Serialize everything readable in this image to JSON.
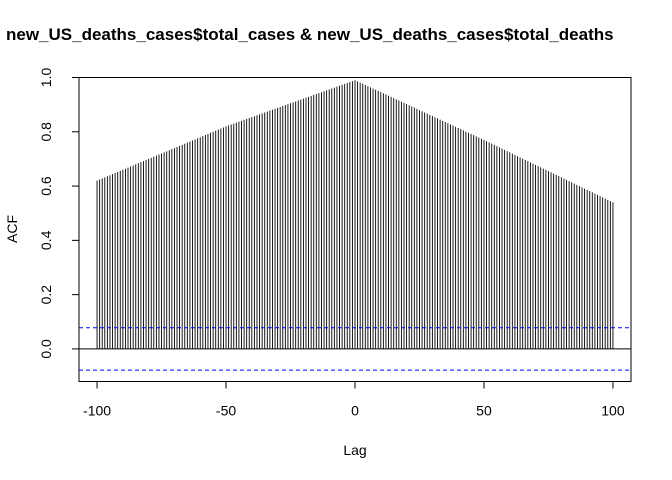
{
  "chart_data": {
    "type": "bar",
    "subtype": "cross-correlation (ccf) spike plot",
    "title": "new_US_deaths_cases$total_cases & new_US_deaths_cases$total_deaths",
    "xlabel": "Lag",
    "ylabel": "ACF",
    "xlim": [
      -107,
      107
    ],
    "ylim": [
      -0.12,
      1.0
    ],
    "x_ticks": [
      -100,
      -50,
      0,
      50,
      100
    ],
    "y_ticks": [
      0.0,
      0.2,
      0.4,
      0.6,
      0.8,
      1.0
    ],
    "x_tick_labels": [
      "-100",
      "-50",
      "0",
      "50",
      "100"
    ],
    "y_tick_labels": [
      "0.0",
      "0.2",
      "0.4",
      "0.6",
      "0.8",
      "1.0"
    ],
    "grid": false,
    "legend": "none",
    "lags": {
      "from": -100,
      "to": 100,
      "step": 1
    },
    "anchor_points": [
      {
        "lag": -100,
        "acf": 0.62
      },
      {
        "lag": -50,
        "acf": 0.82
      },
      {
        "lag": 0,
        "acf": 0.99
      },
      {
        "lag": 50,
        "acf": 0.77
      },
      {
        "lag": 100,
        "acf": 0.54
      }
    ],
    "confidence_bounds": [
      0.078,
      -0.078
    ],
    "colors": {
      "spikes": "#000000",
      "bounds": "#0000ff",
      "frame": "#000000"
    }
  }
}
